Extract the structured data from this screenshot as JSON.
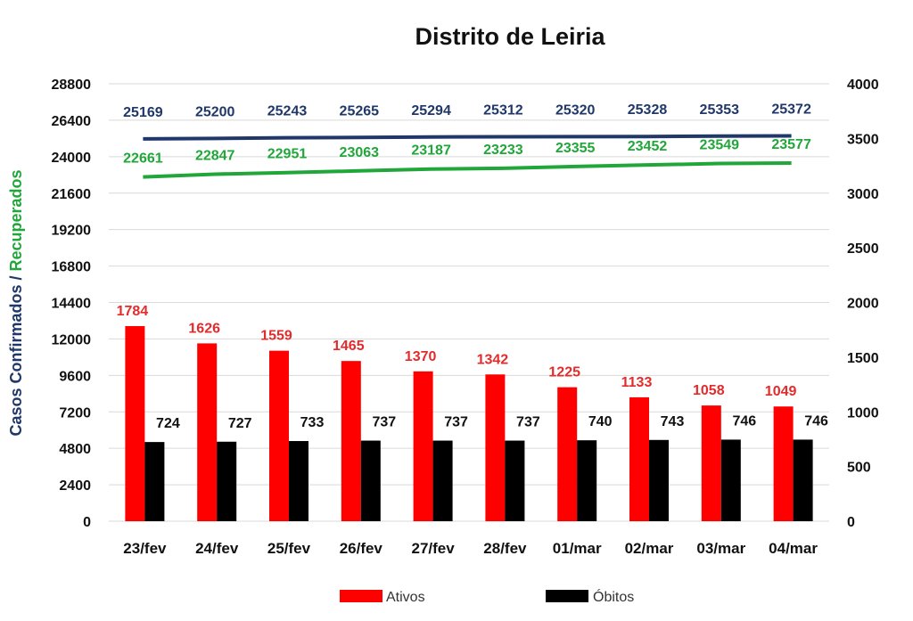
{
  "chart_data": {
    "type": "bar",
    "title": "Distrito de Leiria",
    "ylabel_left_part1": "Casos Confirmados",
    "ylabel_left_sep": " / ",
    "ylabel_left_part2": "Recuperados",
    "categories": [
      "23/fev",
      "24/fev",
      "25/fev",
      "26/fev",
      "27/fev",
      "28/fev",
      "01/mar",
      "02/mar",
      "03/mar",
      "04/mar"
    ],
    "left_axis": {
      "ylim": [
        0,
        28800
      ],
      "ticks": [
        "0",
        "2400",
        "4800",
        "7200",
        "9600",
        "12000",
        "14400",
        "16800",
        "19200",
        "21600",
        "24000",
        "26400",
        "28800"
      ]
    },
    "right_axis": {
      "ylim": [
        0,
        4000
      ],
      "ticks": [
        "0",
        "500",
        "1000",
        "1500",
        "2000",
        "2500",
        "3000",
        "3500",
        "4000"
      ]
    },
    "bar_series": [
      {
        "name": "Ativos",
        "color": "#ff0000",
        "label_color": "#e32b2b",
        "values": [
          1784,
          1626,
          1559,
          1465,
          1370,
          1342,
          1225,
          1133,
          1058,
          1049
        ]
      },
      {
        "name": "Óbitos",
        "color": "#000000",
        "label_color": "#111111",
        "values": [
          724,
          727,
          733,
          737,
          737,
          737,
          740,
          743,
          746,
          746
        ]
      }
    ],
    "line_series": [
      {
        "color": "#1f3869",
        "label_color": "#1f3869",
        "values": [
          25169,
          25200,
          25243,
          25265,
          25294,
          25312,
          25320,
          25328,
          25353,
          25372
        ]
      },
      {
        "color": "#21a63a",
        "label_color": "#21a63a",
        "values": [
          22661,
          22847,
          22951,
          23063,
          23187,
          23233,
          23355,
          23452,
          23549,
          23577
        ]
      }
    ],
    "grid": true,
    "legend_position": "bottom"
  }
}
